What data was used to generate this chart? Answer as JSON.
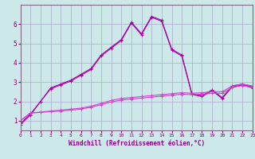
{
  "bg_color": "#cce8e8",
  "grid_color": "#aaaacc",
  "line_color_top": "#aa00aa",
  "line_color_bot": "#cc44cc",
  "xlabel": "Windchill (Refroidissement éolien,°C)",
  "xlabel_color": "#880088",
  "tick_color": "#880088",
  "xlim": [
    0,
    23
  ],
  "ylim": [
    0.5,
    7
  ],
  "xticks": [
    0,
    1,
    2,
    3,
    4,
    5,
    6,
    7,
    8,
    9,
    10,
    11,
    12,
    13,
    14,
    15,
    16,
    17,
    18,
    19,
    20,
    21,
    22,
    23
  ],
  "yticks": [
    1,
    2,
    3,
    4,
    5,
    6
  ],
  "series": [
    [
      0.8,
      1.3,
      2.0,
      2.7,
      2.9,
      3.1,
      3.4,
      3.7,
      4.4,
      4.8,
      5.2,
      6.1,
      5.5,
      6.4,
      6.2,
      4.7,
      4.4,
      2.4,
      2.3,
      2.6,
      2.2,
      2.8,
      2.9,
      2.75
    ],
    [
      0.85,
      1.35,
      2.0,
      2.65,
      2.85,
      3.05,
      3.35,
      3.65,
      4.35,
      4.75,
      5.15,
      6.05,
      5.45,
      6.35,
      6.15,
      4.65,
      4.35,
      2.35,
      2.25,
      2.55,
      2.15,
      2.75,
      2.85,
      2.7
    ],
    [
      1.0,
      1.4,
      1.45,
      1.5,
      1.55,
      1.6,
      1.65,
      1.75,
      1.9,
      2.05,
      2.15,
      2.2,
      2.25,
      2.3,
      2.35,
      2.4,
      2.45,
      2.42,
      2.45,
      2.5,
      2.5,
      2.8,
      2.9,
      2.8
    ],
    [
      1.0,
      1.4,
      1.43,
      1.47,
      1.5,
      1.55,
      1.6,
      1.7,
      1.83,
      1.97,
      2.07,
      2.12,
      2.17,
      2.22,
      2.27,
      2.32,
      2.37,
      2.35,
      2.37,
      2.42,
      2.42,
      2.72,
      2.82,
      2.72
    ]
  ]
}
